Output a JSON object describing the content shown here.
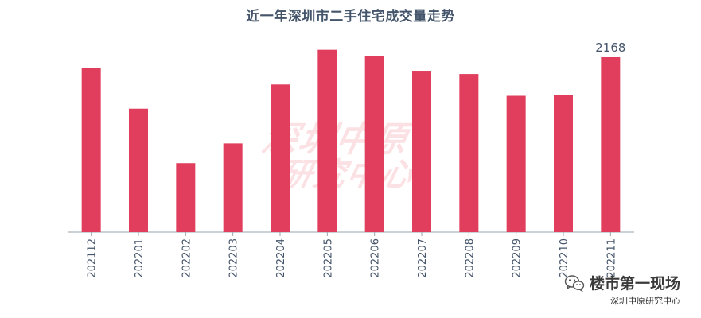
{
  "chart_data": {
    "type": "bar",
    "title": "近一年深圳市二手住宅成交量走势",
    "categories": [
      "202112",
      "202201",
      "202202",
      "202203",
      "202204",
      "202205",
      "202206",
      "202207",
      "202208",
      "202209",
      "202210",
      "202211"
    ],
    "values": [
      2030,
      1530,
      855,
      1100,
      1830,
      2260,
      2180,
      2000,
      1960,
      1690,
      1700,
      2168
    ],
    "data_labels": [
      {
        "index": 11,
        "text": "2168"
      }
    ],
    "ylim": [
      0,
      2700
    ],
    "grid": false,
    "bar_color": "#e03e5c",
    "axis_color": "#9aa3ad",
    "tick_label_color": "#44546a"
  },
  "watermark": {
    "line1": "深圳中原",
    "line2": "研究中心"
  },
  "brand": {
    "icon": "wechat-icon",
    "name": "楼市第一现场",
    "org": "深圳中原研究中心"
  }
}
